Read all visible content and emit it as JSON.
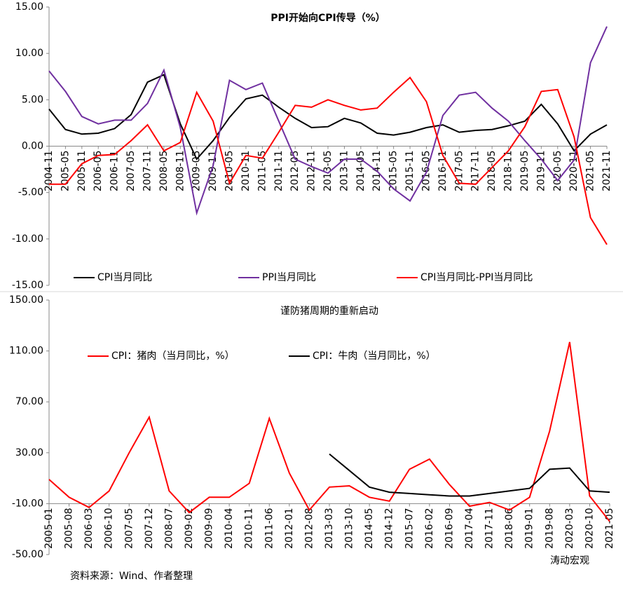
{
  "chart_data": [
    {
      "type": "line",
      "title": "PPI开始向CPI传导（%）",
      "x": [
        "2004-11",
        "2005-05",
        "2005-11",
        "2006-05",
        "2006-11",
        "2007-05",
        "2007-11",
        "2008-05",
        "2008-11",
        "2009-05",
        "2009-11",
        "2010-05",
        "2010-11",
        "2011-05",
        "2011-11",
        "2012-05",
        "2012-11",
        "2013-05",
        "2013-11",
        "2014-05",
        "2014-11",
        "2015-05",
        "2015-11",
        "2016-05",
        "2016-11",
        "2017-05",
        "2017-11",
        "2018-05",
        "2018-11",
        "2019-05",
        "2019-11",
        "2020-05",
        "2020-11",
        "2021-05",
        "2021-11"
      ],
      "series": [
        {
          "name": "CPI当月同比",
          "color": "#000000",
          "values": [
            4.0,
            1.8,
            1.3,
            1.4,
            1.9,
            3.4,
            6.9,
            7.7,
            2.4,
            -1.4,
            0.6,
            3.1,
            5.1,
            5.5,
            4.2,
            3.0,
            2.0,
            2.1,
            3.0,
            2.5,
            1.4,
            1.2,
            1.5,
            2.0,
            2.3,
            1.5,
            1.7,
            1.8,
            2.2,
            2.7,
            4.5,
            2.4,
            -0.5,
            1.3,
            2.3
          ]
        },
        {
          "name": "PPI当月同比",
          "color": "#7030a0",
          "values": [
            8.1,
            5.9,
            3.2,
            2.4,
            2.8,
            2.8,
            4.6,
            8.2,
            2.0,
            -7.2,
            -2.1,
            7.1,
            6.1,
            6.8,
            2.7,
            -1.4,
            -2.2,
            -2.9,
            -1.4,
            -1.4,
            -2.7,
            -4.6,
            -5.9,
            -2.8,
            3.3,
            5.5,
            5.8,
            4.1,
            2.7,
            0.6,
            -1.4,
            -3.7,
            -1.5,
            9.0,
            12.9
          ]
        },
        {
          "name": "CPI当月同比-PPI当月同比",
          "color": "#ff0000",
          "values": [
            -4.1,
            -4.1,
            -1.9,
            -1.0,
            -0.9,
            0.6,
            2.3,
            -0.5,
            0.4,
            5.8,
            2.7,
            -4.0,
            -1.0,
            -1.3,
            1.5,
            4.4,
            4.2,
            5.0,
            4.4,
            3.9,
            4.1,
            5.8,
            7.4,
            4.8,
            -1.0,
            -4.0,
            -4.1,
            -2.3,
            -0.5,
            2.1,
            5.9,
            6.1,
            1.0,
            -7.7,
            -10.6
          ]
        }
      ],
      "ylim": [
        -15,
        15
      ],
      "yticks": [
        {
          "value": -15,
          "label": "-15.00"
        },
        {
          "value": -10,
          "label": "-10.00"
        },
        {
          "value": -5,
          "label": "-5.00"
        },
        {
          "value": 0,
          "label": "0.00"
        },
        {
          "value": 5,
          "label": "5.00"
        },
        {
          "value": 10,
          "label": "10.00"
        },
        {
          "value": 15,
          "label": "15.00"
        }
      ]
    },
    {
      "type": "line",
      "title": "谨防猪周期的重新启动",
      "x": [
        "2005-01",
        "2005-08",
        "2006-03",
        "2006-10",
        "2007-05",
        "2007-12",
        "2008-07",
        "2009-02",
        "2009-09",
        "2010-04",
        "2010-11",
        "2011-06",
        "2012-01",
        "2012-08",
        "2013-03",
        "2013-10",
        "2014-05",
        "2014-12",
        "2015-07",
        "2016-02",
        "2016-09",
        "2017-04",
        "2017-11",
        "2018-06",
        "2019-01",
        "2019-08",
        "2020-03",
        "2020-10",
        "2021-05"
      ],
      "series": [
        {
          "name": "CPI：猪肉（当月同比，%）",
          "color": "#ff0000",
          "values": [
            9,
            -5,
            -13,
            0,
            30,
            58,
            0,
            -17,
            -5,
            -5,
            6,
            57,
            14,
            -15,
            3,
            4,
            -5,
            -8,
            17,
            25,
            5,
            -12,
            -9,
            -15,
            -5,
            47,
            117,
            -4,
            -24
          ]
        },
        {
          "name": "CPI：牛肉（当月同比，%）",
          "color": "#000000",
          "values": [
            null,
            null,
            null,
            null,
            null,
            null,
            null,
            null,
            null,
            null,
            null,
            null,
            null,
            null,
            29,
            16,
            3,
            -1,
            -2,
            -3,
            -4,
            -4,
            -2,
            0,
            2,
            17,
            18,
            0,
            -1
          ]
        }
      ],
      "ylim": [
        -50,
        150
      ],
      "yticks": [
        {
          "value": -50,
          "label": "-50.00"
        },
        {
          "value": -10,
          "label": "-10.00"
        },
        {
          "value": 30,
          "label": "30.00"
        },
        {
          "value": 70,
          "label": "70.00"
        },
        {
          "value": 110,
          "label": "110.00"
        },
        {
          "value": 150,
          "label": "150.00"
        }
      ]
    }
  ],
  "source": "资料来源：Wind、作者整理",
  "watermark": "涛动宏观"
}
